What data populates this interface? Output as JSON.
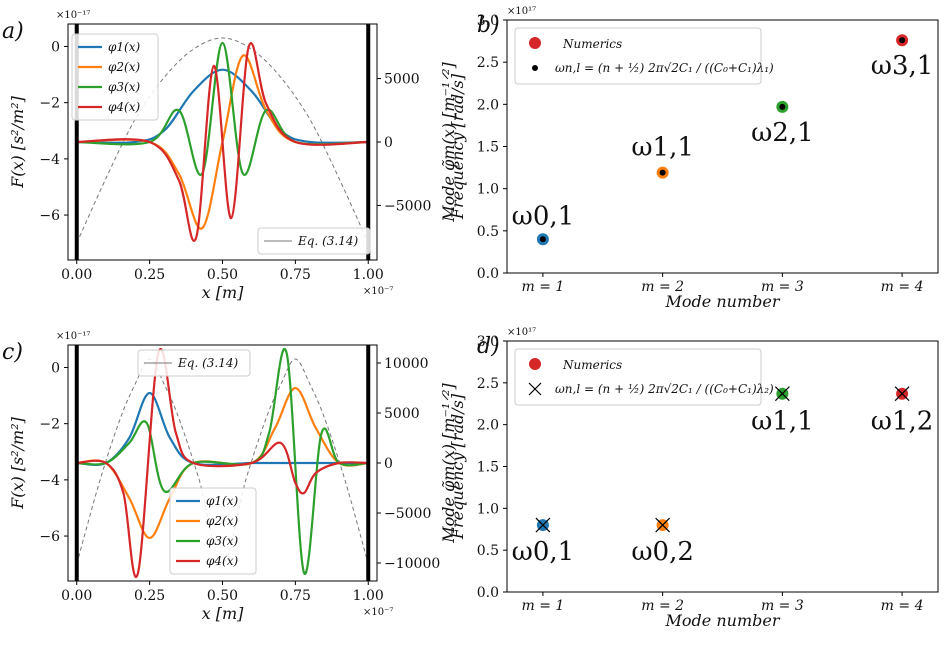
{
  "chart_data": [
    {
      "panel": "a)",
      "type": "line",
      "xlabel": "x [m]",
      "ylabel": "F(x) [s²/m²]",
      "y2label": "Mode φ̃m(x) [m⁻¹ᐟ²]",
      "x_multiplier": "×10⁻⁷",
      "y_multiplier": "×10⁻¹⁷",
      "xlim": [
        -0.03,
        1.03
      ],
      "ylim": [
        -7.6,
        0.8
      ],
      "y2lim": [
        -9300,
        9300
      ],
      "xticks": [
        "0.00",
        "0.25",
        "0.50",
        "0.75",
        "1.00"
      ],
      "yticks": [
        "0",
        "−2",
        "−4",
        "−6"
      ],
      "y2ticks": [
        "5000",
        "0",
        "−5000"
      ],
      "legend": [
        "φ1(x)",
        "φ2(x)",
        "φ3(x)",
        "φ4(x)"
      ],
      "legend2": "Eq. (3.14)",
      "series": [
        {
          "name": "φ1(x)",
          "x": [
            0,
            0.2,
            0.3,
            0.4,
            0.5,
            0.6,
            0.7,
            0.8,
            1.0
          ],
          "y": [
            0,
            0,
            900,
            4000,
            5700,
            4000,
            900,
            0,
            0
          ]
        },
        {
          "name": "φ2(x)",
          "x": [
            0,
            0.25,
            0.35,
            0.43,
            0.5,
            0.57,
            0.65,
            0.75,
            1.0
          ],
          "y": [
            0,
            0,
            -2500,
            -6800,
            0,
            6800,
            2500,
            0,
            0
          ]
        },
        {
          "name": "φ3(x)",
          "x": [
            0,
            0.25,
            0.35,
            0.43,
            0.5,
            0.57,
            0.65,
            0.75,
            1.0
          ],
          "y": [
            0,
            0,
            2500,
            -2500,
            7800,
            -2500,
            2500,
            0,
            0
          ]
        },
        {
          "name": "φ4(x)",
          "x": [
            0,
            0.25,
            0.35,
            0.41,
            0.47,
            0.53,
            0.59,
            0.65,
            0.75,
            1.0
          ],
          "y": [
            0,
            0,
            -3000,
            -7500,
            6000,
            -6000,
            7500,
            3000,
            0,
            0
          ]
        }
      ],
      "reference_curve": {
        "name": "Eq. (3.14)",
        "x": [
          0,
          0.1,
          0.2,
          0.3,
          0.4,
          0.5,
          0.6,
          0.7,
          0.8,
          0.9,
          1.0
        ],
        "y": [
          -7.0,
          -4.7,
          -2.6,
          -1.1,
          -0.1,
          0.3,
          -0.1,
          -1.1,
          -2.6,
          -4.7,
          -7.0
        ]
      },
      "walls_x": [
        0,
        1
      ]
    },
    {
      "panel": "b)",
      "type": "scatter",
      "xlabel": "Mode number",
      "ylabel": "Frequency [rad/s]",
      "y_multiplier": "×10¹⁷",
      "categories": [
        "m = 1",
        "m = 2",
        "m = 3",
        "m = 4"
      ],
      "yticks": [
        "0.0",
        "0.5",
        "1.0",
        "1.5",
        "2.0",
        "2.5",
        "3.0"
      ],
      "ylim": [
        0,
        3.0
      ],
      "legend": [
        "Numerics",
        "ωn,l = (n + ½) 2π√2C₁ / ((C₀+C₁)λ₁)"
      ],
      "values": [
        0.4,
        1.19,
        1.97,
        2.76
      ],
      "point_labels": [
        "ω0,1",
        "ω1,1",
        "ω2,1",
        "ω3,1"
      ],
      "colors": [
        "#1f77b4",
        "#ff7f0e",
        "#2ca02c",
        "#d62728"
      ]
    },
    {
      "panel": "c)",
      "type": "line",
      "xlabel": "x [m]",
      "ylabel": "F(x) [s²/m²]",
      "y2label": "Mode φ̃m(x) [m⁻¹ᐟ²]",
      "x_multiplier": "×10⁻⁷",
      "y_multiplier": "×10⁻¹⁷",
      "xlim": [
        -0.03,
        1.03
      ],
      "ylim": [
        -7.6,
        0.8
      ],
      "y2lim": [
        -11800,
        11800
      ],
      "xticks": [
        "0.00",
        "0.25",
        "0.50",
        "0.75",
        "1.00"
      ],
      "yticks": [
        "0",
        "−2",
        "−4",
        "−6"
      ],
      "y2ticks": [
        "10000",
        "5000",
        "0",
        "−5000",
        "−10000"
      ],
      "legend": [
        "φ1(x)",
        "φ2(x)",
        "φ3(x)",
        "φ4(x)"
      ],
      "legend2": "Eq. (3.14)",
      "series": [
        {
          "name": "φ1(x)",
          "x": [
            0,
            0.1,
            0.18,
            0.25,
            0.32,
            0.4,
            0.6,
            0.68,
            0.75,
            0.82,
            0.9,
            1.0
          ],
          "y": [
            0,
            0,
            2500,
            7000,
            2500,
            0,
            0,
            0,
            0,
            0,
            0,
            0
          ]
        },
        {
          "name": "φ2(x)",
          "x": [
            0,
            0.1,
            0.18,
            0.25,
            0.32,
            0.4,
            0.6,
            0.68,
            0.75,
            0.82,
            0.9,
            1.0
          ],
          "y": [
            0,
            0,
            -3500,
            -7500,
            -3500,
            0,
            0,
            3500,
            7500,
            3500,
            0,
            0
          ]
        },
        {
          "name": "φ3(x)",
          "x": [
            0,
            0.1,
            0.18,
            0.24,
            0.3,
            0.4,
            0.6,
            0.66,
            0.72,
            0.78,
            0.84,
            0.9,
            1.0
          ],
          "y": [
            0,
            0,
            2000,
            4000,
            -2800,
            0,
            0,
            3000,
            11000,
            -11000,
            3000,
            0,
            0
          ]
        },
        {
          "name": "φ4(x)",
          "x": [
            0,
            0.1,
            0.16,
            0.21,
            0.28,
            0.34,
            0.4,
            0.6,
            0.7,
            0.75,
            0.78,
            0.82,
            0.9,
            1.0
          ],
          "y": [
            0,
            0,
            -3000,
            -11000,
            11000,
            3000,
            0,
            0,
            2000,
            -2000,
            -3000,
            -1000,
            0,
            0
          ]
        }
      ],
      "reference_curve": {
        "name": "Eq. (3.14)",
        "x": [
          0,
          0.08,
          0.15,
          0.2,
          0.25,
          0.3,
          0.35,
          0.42,
          0.5,
          0.58,
          0.65,
          0.7,
          0.75,
          0.8,
          0.85,
          0.92,
          1.0
        ],
        "y": [
          -7.0,
          -4.0,
          -1.8,
          -0.6,
          0.3,
          -0.6,
          -1.8,
          -4.0,
          -7.0,
          -4.0,
          -1.8,
          -0.6,
          0.3,
          -0.6,
          -1.8,
          -4.0,
          -7.0
        ]
      },
      "walls_x": [
        0,
        1
      ]
    },
    {
      "panel": "d)",
      "type": "scatter",
      "xlabel": "Mode number",
      "ylabel": "Frequency [rad/s]",
      "y_multiplier": "×10¹⁷",
      "categories": [
        "m = 1",
        "m = 2",
        "m = 3",
        "m = 4"
      ],
      "yticks": [
        "0.0",
        "0.5",
        "1.0",
        "1.5",
        "2.0",
        "2.5",
        "3.0"
      ],
      "ylim": [
        0,
        3.0
      ],
      "legend": [
        "Numerics",
        "ωn,l = (n + ½) 2π√2C₁ / ((C₀+C₁)λ₂)"
      ],
      "values": [
        0.8,
        0.8,
        2.37,
        2.37
      ],
      "point_labels": [
        "ω0,1",
        "ω0,2",
        "ω1,1",
        "ω1,2"
      ],
      "colors": [
        "#1f77b4",
        "#ff7f0e",
        "#2ca02c",
        "#d62728"
      ]
    }
  ]
}
